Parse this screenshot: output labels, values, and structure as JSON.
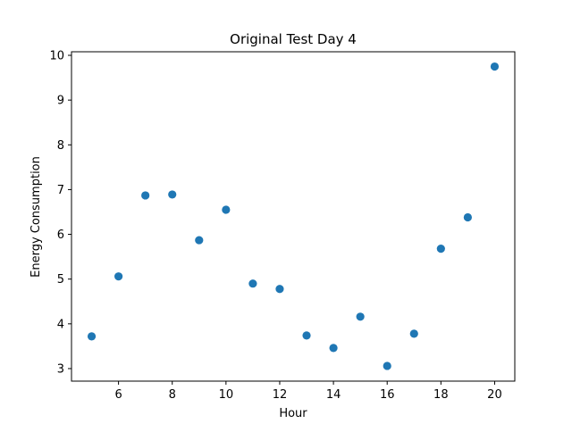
{
  "chart_data": {
    "type": "scatter",
    "title": "Original Test Day 4",
    "xlabel": "Hour",
    "ylabel": "Energy Consumption",
    "xlim": [
      4.25,
      20.75
    ],
    "ylim": [
      2.72,
      10.08
    ],
    "xticks": [
      6,
      8,
      10,
      12,
      14,
      16,
      18,
      20
    ],
    "xtick_labels": [
      "6",
      "8",
      "10",
      "12",
      "14",
      "16",
      "18",
      "20"
    ],
    "yticks": [
      3,
      4,
      5,
      6,
      7,
      8,
      9,
      10
    ],
    "ytick_labels": [
      "3",
      "4",
      "5",
      "6",
      "7",
      "8",
      "9",
      "10"
    ],
    "grid": false,
    "marker_color": "#1f77b4",
    "series": [
      {
        "x": [
          5,
          6,
          7,
          8,
          9,
          10,
          11,
          12,
          13,
          14,
          15,
          16,
          17,
          18,
          19,
          20
        ],
        "y": [
          3.72,
          5.06,
          6.87,
          6.89,
          5.87,
          6.55,
          4.9,
          4.78,
          3.74,
          3.46,
          4.16,
          3.06,
          3.78,
          5.68,
          6.38,
          9.75
        ]
      }
    ]
  }
}
